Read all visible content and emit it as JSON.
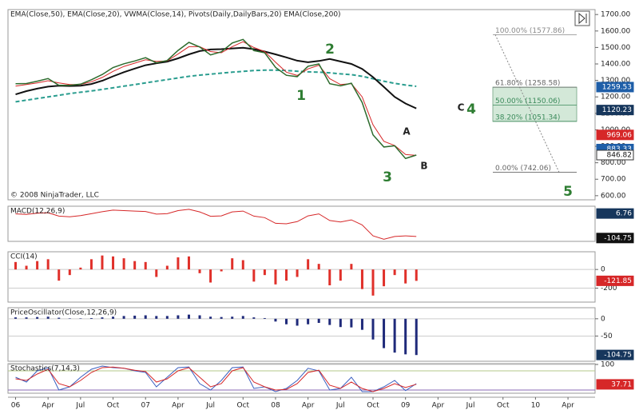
{
  "chart_data": [
    {
      "type": "line",
      "title": "EMA(Close,50), EMA(Close,20), VWMA(Close,14), Pivots(Daily,DailyBars,20) EMA(Close,200)",
      "copyright": "© 2008 NinjaTrader, LLC",
      "x": [
        0,
        1,
        2,
        3,
        4,
        5,
        6,
        7,
        8,
        9,
        10,
        11,
        12,
        13,
        14,
        15,
        16,
        17,
        18,
        19,
        20,
        21,
        22,
        23,
        24,
        25,
        26,
        27,
        28,
        29,
        30,
        31,
        32,
        33,
        34,
        35,
        36,
        37
      ],
      "xlim": [
        -0.7,
        53.5
      ],
      "xticks": [
        {
          "value": 0,
          "label": "06"
        },
        {
          "value": 3,
          "label": "Apr"
        },
        {
          "value": 6,
          "label": "Jul"
        },
        {
          "value": 9,
          "label": "Oct"
        },
        {
          "value": 12,
          "label": "07"
        },
        {
          "value": 15,
          "label": "Apr"
        },
        {
          "value": 18,
          "label": "Jul"
        },
        {
          "value": 21,
          "label": "Oct"
        },
        {
          "value": 24,
          "label": "08"
        },
        {
          "value": 27,
          "label": "Apr"
        },
        {
          "value": 30,
          "label": "Jul"
        },
        {
          "value": 33,
          "label": "Oct"
        },
        {
          "value": 36,
          "label": "09"
        },
        {
          "value": 39,
          "label": "Apr"
        },
        {
          "value": 42,
          "label": "Jul"
        },
        {
          "value": 45,
          "label": "Oct"
        },
        {
          "value": 48,
          "label": "10"
        },
        {
          "value": 51,
          "label": "Apr"
        }
      ],
      "ylim": [
        575,
        1730
      ],
      "yticks": [
        {
          "value": 1700,
          "label": "1700.00"
        },
        {
          "value": 1600,
          "label": "1600.00"
        },
        {
          "value": 1500,
          "label": "1500.00"
        },
        {
          "value": 1400,
          "label": "1400.00"
        },
        {
          "value": 1300,
          "label": "1300.00"
        },
        {
          "value": 1200,
          "label": "1200.00"
        },
        {
          "value": 1100,
          "label": "1100.00"
        },
        {
          "value": 1000,
          "label": "1000.00"
        },
        {
          "value": 900,
          "label": "900.00"
        },
        {
          "value": 800,
          "label": "800.00"
        },
        {
          "value": 700,
          "label": "700.00"
        },
        {
          "value": 600,
          "label": "600.00"
        }
      ],
      "series": [
        {
          "color": "#2a9d8f",
          "dashed": true,
          "width": 2,
          "values": [
            1170,
            1180,
            1190,
            1200,
            1210,
            1220,
            1228,
            1236,
            1245,
            1255,
            1265,
            1275,
            1285,
            1295,
            1305,
            1315,
            1325,
            1332,
            1338,
            1344,
            1350,
            1355,
            1360,
            1362,
            1362,
            1360,
            1356,
            1352,
            1350,
            1346,
            1340,
            1335,
            1325,
            1310,
            1295,
            1282,
            1272,
            1264
          ]
        },
        {
          "color": "#111111",
          "width": 2,
          "values": [
            1215,
            1235,
            1250,
            1262,
            1268,
            1266,
            1268,
            1278,
            1298,
            1325,
            1350,
            1372,
            1392,
            1404,
            1414,
            1434,
            1458,
            1478,
            1488,
            1490,
            1494,
            1498,
            1490,
            1475,
            1458,
            1440,
            1420,
            1410,
            1418,
            1430,
            1415,
            1400,
            1370,
            1320,
            1260,
            1200,
            1160,
            1130
          ]
        },
        {
          "color": "#d62728",
          "width": 1,
          "values": [
            1265,
            1275,
            1285,
            1298,
            1285,
            1275,
            1276,
            1292,
            1318,
            1355,
            1385,
            1405,
            1425,
            1415,
            1418,
            1460,
            1505,
            1505,
            1475,
            1468,
            1505,
            1535,
            1500,
            1475,
            1410,
            1350,
            1330,
            1370,
            1392,
            1310,
            1275,
            1280,
            1200,
            1030,
            930,
            905,
            850,
            845
          ]
        },
        {
          "color": "#2d6b2d",
          "width": 1.5,
          "values": [
            1280,
            1281,
            1295,
            1311,
            1270,
            1270,
            1277,
            1304,
            1336,
            1378,
            1401,
            1418,
            1438,
            1407,
            1421,
            1482,
            1531,
            1503,
            1455,
            1474,
            1527,
            1549,
            1481,
            1468,
            1379,
            1331,
            1323,
            1386,
            1400,
            1280,
            1267,
            1283,
            1166,
            969,
            896,
            903,
            826,
            847
          ]
        }
      ],
      "badges": [
        {
          "value": 1259.53,
          "color": "#1e5ea8"
        },
        {
          "value": 1120.23,
          "color": "#16365c"
        },
        {
          "value": 969.06,
          "color": "#d62728"
        },
        {
          "value": 883.33,
          "color": "#1e5ea8"
        },
        {
          "value": 846.82,
          "color": "#ffffff"
        }
      ],
      "fib": [
        {
          "label": "100.00% (1577.86)",
          "value": 1577.86,
          "color": "#888888"
        },
        {
          "label": "61.80% (1258.58)",
          "value": 1258.58,
          "color": "#666666"
        },
        {
          "label": "50.00% (1150.06)",
          "value": 1150.06,
          "color": "#3a8a5a"
        },
        {
          "label": "38.20% (1051.34)",
          "value": 1051.34,
          "color": "#3a8a5a"
        },
        {
          "label": "0.00% (742.06)",
          "value": 742.06,
          "color": "#666666"
        }
      ],
      "annotations": [
        "1",
        "2",
        "3",
        "4",
        "5",
        "A",
        "B",
        "C"
      ]
    },
    {
      "type": "line",
      "title": "MACD(12,26,9)",
      "x": [
        0,
        1,
        2,
        3,
        4,
        5,
        6,
        7,
        8,
        9,
        10,
        11,
        12,
        13,
        14,
        15,
        16,
        17,
        18,
        19,
        20,
        21,
        22,
        23,
        24,
        25,
        26,
        27,
        28,
        29,
        30,
        31,
        32,
        33,
        34,
        35,
        36,
        37
      ],
      "ylim": [
        -120,
        40
      ],
      "yticks": [],
      "series": [
        {
          "color": "#d62728",
          "width": 1,
          "values": [
            5,
            3,
            8,
            10,
            -5,
            -8,
            -3,
            6,
            15,
            22,
            20,
            18,
            16,
            4,
            6,
            20,
            26,
            14,
            -6,
            -4,
            14,
            18,
            -5,
            -12,
            -38,
            -40,
            -30,
            -4,
            5,
            -25,
            -32,
            -22,
            -45,
            -95,
            -110,
            -98,
            -95,
            -98
          ]
        }
      ],
      "badges": [
        {
          "value": 6.76,
          "color": "#16365c"
        },
        {
          "value": -104.75,
          "color": "#111111"
        }
      ]
    },
    {
      "type": "bar",
      "title": "CCI(14)",
      "x": [
        0,
        1,
        2,
        3,
        4,
        5,
        6,
        7,
        8,
        9,
        10,
        11,
        12,
        13,
        14,
        15,
        16,
        17,
        18,
        19,
        20,
        21,
        22,
        23,
        24,
        25,
        26,
        27,
        28,
        29,
        30,
        31,
        32,
        33,
        34,
        35,
        36,
        37
      ],
      "ylim": [
        -350,
        190
      ],
      "yticks": [
        0,
        -200
      ],
      "series": [
        {
          "color": "#e0302a",
          "values": [
            80,
            40,
            90,
            110,
            -120,
            -60,
            20,
            110,
            150,
            140,
            120,
            90,
            80,
            -80,
            40,
            130,
            140,
            -40,
            -140,
            -20,
            120,
            100,
            -130,
            -60,
            -160,
            -120,
            -80,
            110,
            60,
            -170,
            -120,
            60,
            -210,
            -280,
            -180,
            -60,
            -150,
            -122
          ]
        }
      ],
      "badges": [
        {
          "value": -121.85,
          "color": "#d62728"
        }
      ]
    },
    {
      "type": "bar",
      "title": "PriceOscillator(Close,12,26,9)",
      "x": [
        0,
        1,
        2,
        3,
        4,
        5,
        6,
        7,
        8,
        9,
        10,
        11,
        12,
        13,
        14,
        15,
        16,
        17,
        18,
        19,
        20,
        21,
        22,
        23,
        24,
        25,
        26,
        27,
        28,
        29,
        30,
        31,
        32,
        33,
        34,
        35,
        36,
        37
      ],
      "ylim": [
        -123,
        32
      ],
      "yticks": [
        0,
        -50
      ],
      "series": [
        {
          "color": "#1f2a7a",
          "values": [
            4,
            4,
            5,
            6,
            3,
            1,
            1,
            2,
            4,
            6,
            8,
            9,
            10,
            8,
            8,
            10,
            12,
            10,
            6,
            5,
            6,
            8,
            4,
            2,
            -8,
            -16,
            -20,
            -16,
            -12,
            -18,
            -24,
            -25,
            -32,
            -60,
            -85,
            -98,
            -103,
            -105
          ]
        }
      ],
      "badges": [
        {
          "value": -104.75,
          "color": "#16365c"
        }
      ]
    },
    {
      "type": "line",
      "title": "Stochastics(7,14,3)",
      "x": [
        0,
        1,
        2,
        3,
        4,
        5,
        6,
        7,
        8,
        9,
        10,
        11,
        12,
        13,
        14,
        15,
        16,
        17,
        18,
        19,
        20,
        21,
        22,
        23,
        24,
        25,
        26,
        27,
        28,
        29,
        30,
        31,
        32,
        33,
        34,
        35,
        36,
        37
      ],
      "ylim": [
        10,
        102.5
      ],
      "yticks": [
        100
      ],
      "levels": [
        80,
        20
      ],
      "series": [
        {
          "color": "#3b5fc0",
          "width": 1,
          "values": [
            60,
            45,
            80,
            90,
            20,
            30,
            60,
            85,
            95,
            90,
            88,
            80,
            75,
            30,
            60,
            90,
            92,
            40,
            20,
            50,
            90,
            92,
            25,
            30,
            15,
            25,
            50,
            88,
            80,
            20,
            25,
            60,
            15,
            15,
            30,
            50,
            18,
            40
          ]
        },
        {
          "color": "#d62728",
          "width": 1,
          "values": [
            55,
            50,
            70,
            85,
            40,
            30,
            50,
            75,
            90,
            92,
            88,
            82,
            78,
            45,
            55,
            80,
            90,
            60,
            30,
            40,
            80,
            90,
            45,
            30,
            20,
            22,
            40,
            75,
            82,
            35,
            25,
            45,
            25,
            15,
            25,
            40,
            28,
            38
          ]
        }
      ],
      "badges": [
        {
          "value": 37.71,
          "color": "#d62728"
        }
      ]
    }
  ]
}
